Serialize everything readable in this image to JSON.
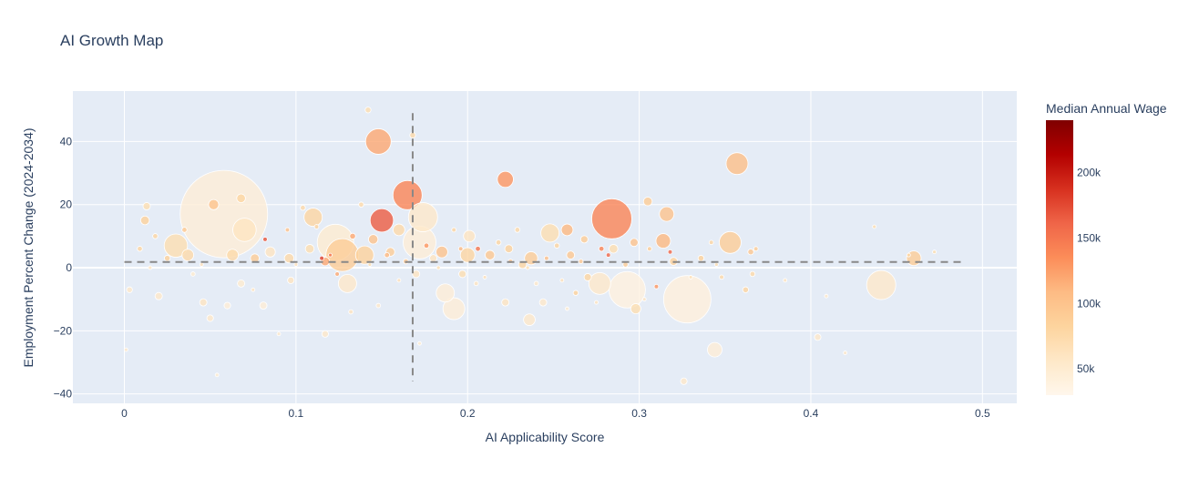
{
  "chart_data": {
    "type": "scatter",
    "title": "AI Growth Map",
    "xlabel": "AI Applicability Score",
    "ylabel": "Employment Percent Change (2024-2034)",
    "xlim": [
      -0.03,
      0.52
    ],
    "ylim": [
      -43,
      56
    ],
    "x_ticks": [
      0,
      0.1,
      0.2,
      0.3,
      0.4,
      0.5
    ],
    "x_tick_labels": [
      "0",
      "0.1",
      "0.2",
      "0.3",
      "0.4",
      "0.5"
    ],
    "y_ticks": [
      -40,
      -20,
      0,
      20,
      40
    ],
    "y_tick_labels": [
      "−40",
      "−20",
      "0",
      "20",
      "40"
    ],
    "reference_lines": {
      "horizontal": {
        "y": 1.8,
        "x_from": 0,
        "x_to": 0.49,
        "style": "dashed",
        "color": "#888888"
      },
      "vertical": {
        "x": 0.168,
        "y_from": -36,
        "y_to": 49,
        "style": "dashed",
        "color": "#888888"
      }
    },
    "colorbar": {
      "title": "Median Annual Wage",
      "range": [
        30000,
        240000
      ],
      "ticks": [
        50000,
        100000,
        150000,
        200000
      ],
      "tick_labels": [
        "50k",
        "100k",
        "150k",
        "200k"
      ],
      "colorscale": [
        "#fff7ec",
        "#fee8c8",
        "#fdd49e",
        "#fdbb84",
        "#fc8d59",
        "#ef6548",
        "#d7301f",
        "#b30000",
        "#7f0000"
      ]
    },
    "points": [
      {
        "x": 0.058,
        "y": 17,
        "s": 12,
        "w": 45000
      },
      {
        "x": 0.148,
        "y": 40,
        "s": 3.5,
        "w": 120000
      },
      {
        "x": 0.165,
        "y": 23,
        "s": 4,
        "w": 140000
      },
      {
        "x": 0.15,
        "y": 15,
        "s": 3.2,
        "w": 165000
      },
      {
        "x": 0.174,
        "y": 16,
        "s": 4,
        "w": 55000
      },
      {
        "x": 0.284,
        "y": 15.5,
        "s": 5.5,
        "w": 140000
      },
      {
        "x": 0.357,
        "y": 33,
        "s": 3,
        "w": 105000
      },
      {
        "x": 0.222,
        "y": 28,
        "s": 2.2,
        "w": 130000
      },
      {
        "x": 0.328,
        "y": -10,
        "s": 6.5,
        "w": 42000
      },
      {
        "x": 0.293,
        "y": -7,
        "s": 5,
        "w": 40000
      },
      {
        "x": 0.441,
        "y": -5.5,
        "s": 4,
        "w": 55000
      },
      {
        "x": 0.123,
        "y": 8,
        "s": 5,
        "w": 50000
      },
      {
        "x": 0.127,
        "y": 4,
        "s": 4.5,
        "w": 90000
      },
      {
        "x": 0.07,
        "y": 12,
        "s": 3.2,
        "w": 60000
      },
      {
        "x": 0.172,
        "y": 8,
        "s": 4.5,
        "w": 45000
      },
      {
        "x": 0.03,
        "y": 7,
        "s": 3.2,
        "w": 70000
      },
      {
        "x": 0.11,
        "y": 16,
        "s": 2.5,
        "w": 80000
      },
      {
        "x": 0.353,
        "y": 8,
        "s": 3,
        "w": 90000
      },
      {
        "x": 0.277,
        "y": -5,
        "s": 3,
        "w": 55000
      },
      {
        "x": 0.192,
        "y": -13,
        "s": 3,
        "w": 45000
      },
      {
        "x": 0.248,
        "y": 11,
        "s": 2.5,
        "w": 70000
      },
      {
        "x": 0.14,
        "y": 4,
        "s": 2.5,
        "w": 85000
      },
      {
        "x": 0.2,
        "y": 4,
        "s": 2,
        "w": 80000
      },
      {
        "x": 0.13,
        "y": -5,
        "s": 2.5,
        "w": 55000
      },
      {
        "x": 0.187,
        "y": -8,
        "s": 2.5,
        "w": 45000
      },
      {
        "x": 0.316,
        "y": 17,
        "s": 2,
        "w": 100000
      },
      {
        "x": 0.314,
        "y": 8.5,
        "s": 2,
        "w": 110000
      },
      {
        "x": 0.46,
        "y": 3,
        "s": 2,
        "w": 90000
      },
      {
        "x": 0.344,
        "y": -26,
        "s": 2,
        "w": 45000
      },
      {
        "x": 0.236,
        "y": -16.5,
        "s": 1.6,
        "w": 55000
      },
      {
        "x": 0.258,
        "y": 12,
        "s": 1.6,
        "w": 110000
      },
      {
        "x": 0.237,
        "y": 3,
        "s": 1.8,
        "w": 90000
      },
      {
        "x": 0.201,
        "y": 10,
        "s": 1.6,
        "w": 60000
      },
      {
        "x": 0.16,
        "y": 12,
        "s": 1.6,
        "w": 75000
      },
      {
        "x": 0.185,
        "y": 5,
        "s": 1.6,
        "w": 100000
      },
      {
        "x": 0.037,
        "y": 4,
        "s": 1.6,
        "w": 75000
      },
      {
        "x": 0.063,
        "y": 4,
        "s": 1.6,
        "w": 75000
      },
      {
        "x": 0.068,
        "y": 22,
        "s": 1.2,
        "w": 80000
      },
      {
        "x": 0.052,
        "y": 20,
        "s": 1.4,
        "w": 100000
      },
      {
        "x": 0.012,
        "y": 15,
        "s": 1.2,
        "w": 85000
      },
      {
        "x": 0.013,
        "y": 19.5,
        "s": 1,
        "w": 70000
      },
      {
        "x": 0.305,
        "y": 21,
        "s": 1.2,
        "w": 90000
      },
      {
        "x": 0.096,
        "y": 3,
        "s": 1.3,
        "w": 75000
      },
      {
        "x": 0.085,
        "y": 5,
        "s": 1.4,
        "w": 60000
      },
      {
        "x": 0.076,
        "y": 3,
        "s": 1.2,
        "w": 90000
      },
      {
        "x": 0.108,
        "y": 6,
        "s": 1.2,
        "w": 70000
      },
      {
        "x": 0.117,
        "y": 2,
        "s": 1.2,
        "w": 120000
      },
      {
        "x": 0.145,
        "y": 9,
        "s": 1.3,
        "w": 100000
      },
      {
        "x": 0.155,
        "y": 5,
        "s": 1.2,
        "w": 90000
      },
      {
        "x": 0.213,
        "y": 4,
        "s": 1.3,
        "w": 95000
      },
      {
        "x": 0.224,
        "y": 6,
        "s": 1.1,
        "w": 85000
      },
      {
        "x": 0.232,
        "y": 1,
        "s": 1.1,
        "w": 80000
      },
      {
        "x": 0.26,
        "y": 4,
        "s": 1.1,
        "w": 95000
      },
      {
        "x": 0.268,
        "y": 9,
        "s": 1,
        "w": 90000
      },
      {
        "x": 0.27,
        "y": -3,
        "s": 1,
        "w": 80000
      },
      {
        "x": 0.285,
        "y": 6,
        "s": 1.2,
        "w": 70000
      },
      {
        "x": 0.297,
        "y": 8,
        "s": 1.1,
        "w": 100000
      },
      {
        "x": 0.32,
        "y": 2,
        "s": 1.1,
        "w": 85000
      },
      {
        "x": 0.298,
        "y": -13,
        "s": 1.4,
        "w": 70000
      },
      {
        "x": 0.404,
        "y": -22,
        "s": 0.9,
        "w": 55000
      },
      {
        "x": 0.326,
        "y": -36,
        "s": 0.9,
        "w": 55000
      },
      {
        "x": 0.244,
        "y": -11,
        "s": 1,
        "w": 55000
      },
      {
        "x": 0.222,
        "y": -11,
        "s": 1,
        "w": 60000
      },
      {
        "x": 0.18,
        "y": 3,
        "s": 1,
        "w": 60000
      },
      {
        "x": 0.17,
        "y": -2,
        "s": 1,
        "w": 60000
      },
      {
        "x": 0.197,
        "y": -2,
        "s": 1,
        "w": 70000
      },
      {
        "x": 0.02,
        "y": -9,
        "s": 1,
        "w": 55000
      },
      {
        "x": 0.046,
        "y": -11,
        "s": 1,
        "w": 60000
      },
      {
        "x": 0.05,
        "y": -16,
        "s": 0.9,
        "w": 55000
      },
      {
        "x": 0.06,
        "y": -12,
        "s": 0.9,
        "w": 45000
      },
      {
        "x": 0.068,
        "y": -5,
        "s": 1,
        "w": 50000
      },
      {
        "x": 0.081,
        "y": -12,
        "s": 1,
        "w": 45000
      },
      {
        "x": 0.097,
        "y": -4,
        "s": 0.9,
        "w": 60000
      },
      {
        "x": 0.117,
        "y": -21,
        "s": 0.9,
        "w": 55000
      },
      {
        "x": 0.142,
        "y": 50,
        "s": 0.8,
        "w": 70000
      },
      {
        "x": 0.168,
        "y": 42,
        "s": 0.8,
        "w": 75000
      },
      {
        "x": 0.003,
        "y": -7,
        "s": 0.8,
        "w": 55000
      },
      {
        "x": 0.001,
        "y": -26,
        "s": 0.5,
        "w": 55000
      },
      {
        "x": 0.018,
        "y": 10,
        "s": 0.7,
        "w": 80000
      },
      {
        "x": 0.025,
        "y": 3,
        "s": 0.8,
        "w": 85000
      },
      {
        "x": 0.009,
        "y": 6,
        "s": 0.7,
        "w": 80000
      },
      {
        "x": 0.082,
        "y": 9,
        "s": 0.6,
        "w": 170000
      },
      {
        "x": 0.115,
        "y": 3,
        "s": 0.6,
        "w": 180000
      },
      {
        "x": 0.124,
        "y": -2,
        "s": 0.6,
        "w": 120000
      },
      {
        "x": 0.133,
        "y": 10,
        "s": 0.8,
        "w": 120000
      },
      {
        "x": 0.104,
        "y": 19,
        "s": 0.7,
        "w": 75000
      },
      {
        "x": 0.153,
        "y": 4,
        "s": 0.7,
        "w": 110000
      },
      {
        "x": 0.164,
        "y": 2,
        "s": 0.7,
        "w": 95000
      },
      {
        "x": 0.176,
        "y": 7,
        "s": 0.7,
        "w": 130000
      },
      {
        "x": 0.206,
        "y": 6,
        "s": 0.7,
        "w": 150000
      },
      {
        "x": 0.218,
        "y": 8,
        "s": 0.7,
        "w": 80000
      },
      {
        "x": 0.229,
        "y": 12,
        "s": 0.7,
        "w": 75000
      },
      {
        "x": 0.252,
        "y": 7,
        "s": 0.7,
        "w": 80000
      },
      {
        "x": 0.263,
        "y": -8,
        "s": 0.7,
        "w": 85000
      },
      {
        "x": 0.278,
        "y": 6,
        "s": 0.7,
        "w": 140000
      },
      {
        "x": 0.282,
        "y": 4,
        "s": 0.6,
        "w": 160000
      },
      {
        "x": 0.292,
        "y": 1,
        "s": 0.7,
        "w": 90000
      },
      {
        "x": 0.31,
        "y": -6,
        "s": 0.6,
        "w": 130000
      },
      {
        "x": 0.318,
        "y": 5,
        "s": 0.6,
        "w": 160000
      },
      {
        "x": 0.336,
        "y": 3,
        "s": 0.8,
        "w": 85000
      },
      {
        "x": 0.342,
        "y": 8,
        "s": 0.6,
        "w": 80000
      },
      {
        "x": 0.348,
        "y": -3,
        "s": 0.6,
        "w": 75000
      },
      {
        "x": 0.362,
        "y": -7,
        "s": 0.8,
        "w": 80000
      },
      {
        "x": 0.366,
        "y": -2,
        "s": 0.7,
        "w": 75000
      },
      {
        "x": 0.365,
        "y": 5,
        "s": 0.8,
        "w": 95000
      },
      {
        "x": 0.368,
        "y": 6,
        "s": 0.6,
        "w": 90000
      },
      {
        "x": 0.385,
        "y": -4,
        "s": 0.5,
        "w": 60000
      },
      {
        "x": 0.409,
        "y": -9,
        "s": 0.5,
        "w": 55000
      },
      {
        "x": 0.42,
        "y": -27,
        "s": 0.4,
        "w": 55000
      },
      {
        "x": 0.437,
        "y": 13,
        "s": 0.4,
        "w": 70000
      },
      {
        "x": 0.457,
        "y": 4,
        "s": 0.5,
        "w": 80000
      },
      {
        "x": 0.472,
        "y": 5,
        "s": 0.4,
        "w": 70000
      },
      {
        "x": 0.04,
        "y": -2,
        "s": 0.6,
        "w": 50000
      },
      {
        "x": 0.054,
        "y": -34,
        "s": 0.4,
        "w": 50000
      },
      {
        "x": 0.09,
        "y": -21,
        "s": 0.5,
        "w": 55000
      },
      {
        "x": 0.132,
        "y": -14,
        "s": 0.6,
        "w": 60000
      },
      {
        "x": 0.148,
        "y": -12,
        "s": 0.6,
        "w": 55000
      },
      {
        "x": 0.172,
        "y": -24,
        "s": 0.4,
        "w": 50000
      },
      {
        "x": 0.205,
        "y": -5,
        "s": 0.6,
        "w": 60000
      },
      {
        "x": 0.24,
        "y": -5,
        "s": 0.6,
        "w": 55000
      },
      {
        "x": 0.258,
        "y": -13,
        "s": 0.5,
        "w": 50000
      },
      {
        "x": 0.225,
        "y": 2,
        "s": 0.6,
        "w": 100000
      },
      {
        "x": 0.035,
        "y": 12,
        "s": 0.7,
        "w": 95000
      },
      {
        "x": 0.095,
        "y": 12,
        "s": 0.6,
        "w": 100000
      },
      {
        "x": 0.112,
        "y": 13,
        "s": 0.6,
        "w": 85000
      },
      {
        "x": 0.138,
        "y": 20,
        "s": 0.7,
        "w": 75000
      },
      {
        "x": 0.192,
        "y": 12,
        "s": 0.6,
        "w": 80000
      },
      {
        "x": 0.196,
        "y": 6,
        "s": 0.6,
        "w": 110000
      },
      {
        "x": 0.246,
        "y": 3,
        "s": 0.6,
        "w": 105000
      },
      {
        "x": 0.266,
        "y": 2,
        "s": 0.6,
        "w": 95000
      },
      {
        "x": 0.306,
        "y": 6,
        "s": 0.6,
        "w": 90000
      },
      {
        "x": 0.015,
        "y": 0,
        "s": 0.5,
        "w": 60000
      },
      {
        "x": 0.045,
        "y": 1,
        "s": 0.5,
        "w": 65000
      },
      {
        "x": 0.075,
        "y": -7,
        "s": 0.5,
        "w": 60000
      },
      {
        "x": 0.1,
        "y": 1,
        "s": 0.5,
        "w": 65000
      },
      {
        "x": 0.12,
        "y": 4,
        "s": 0.5,
        "w": 150000
      },
      {
        "x": 0.143,
        "y": 1,
        "s": 0.5,
        "w": 70000
      },
      {
        "x": 0.16,
        "y": -4,
        "s": 0.5,
        "w": 65000
      },
      {
        "x": 0.183,
        "y": 0,
        "s": 0.5,
        "w": 70000
      },
      {
        "x": 0.21,
        "y": -3,
        "s": 0.5,
        "w": 65000
      },
      {
        "x": 0.235,
        "y": 0,
        "s": 0.5,
        "w": 70000
      },
      {
        "x": 0.255,
        "y": -4,
        "s": 0.5,
        "w": 65000
      },
      {
        "x": 0.275,
        "y": -11,
        "s": 0.5,
        "w": 60000
      },
      {
        "x": 0.303,
        "y": -10,
        "s": 0.5,
        "w": 60000
      },
      {
        "x": 0.33,
        "y": -3,
        "s": 0.5,
        "w": 65000
      },
      {
        "x": 0.345,
        "y": 1,
        "s": 0.5,
        "w": 70000
      }
    ]
  }
}
